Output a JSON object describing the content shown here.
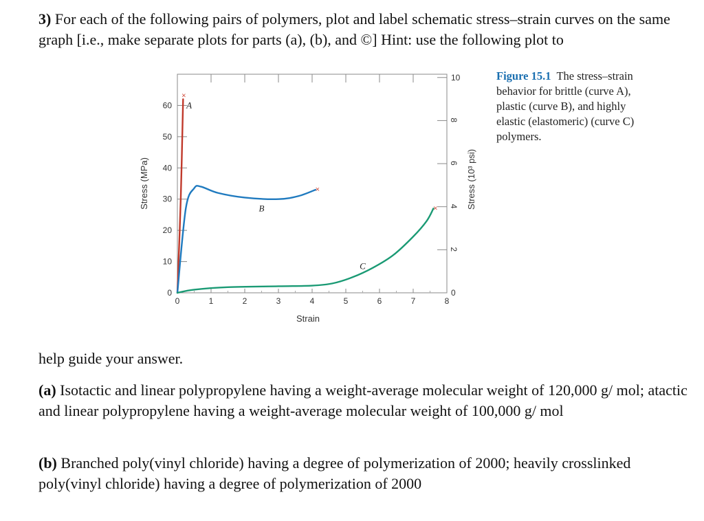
{
  "question": {
    "number": "3)",
    "intro": "For each of the following pairs of polymers, plot and label schematic stress–strain curves on the same graph [i.e., make separate plots for parts (a), (b), and ©] Hint: use the following plot to",
    "after_figure": "help guide your answer.",
    "part_a_label": "(a)",
    "part_a": "Isotactic and linear polypropylene having a weight-average molecular weight of 120,000 g/ mol; atactic and linear polypropylene having a weight-average molecular weight of 100,000 g/ mol",
    "part_b_label": "(b)",
    "part_b": "Branched poly(vinyl chloride) having a degree of polymerization of 2000; heavily crosslinked poly(vinyl chloride) having a degree of polymerization of 2000"
  },
  "caption": {
    "label": "Figure 15.1",
    "text": "The stress–strain behavior for brittle (curve A), plastic (curve B), and highly elastic (elastomeric) (curve C) polymers."
  },
  "chart_data": {
    "type": "line",
    "title": "",
    "xlabel": "Strain",
    "ylabel_left": "Stress (MPa)",
    "ylabel_right": "Stress (10³ psi)",
    "xlim": [
      0,
      8
    ],
    "ylim": [
      0,
      65
    ],
    "x_ticks": [
      0,
      1,
      2,
      3,
      4,
      5,
      6,
      7,
      8
    ],
    "y_ticks_left": [
      0,
      10,
      20,
      30,
      40,
      50,
      60
    ],
    "y_ticks_right": [
      0,
      2,
      4,
      6,
      8,
      10
    ],
    "right_axis_factor_mpa_per_kpsi": 6.895,
    "grid": false,
    "series": [
      {
        "name": "A",
        "color": "#c0392b",
        "points": [
          [
            0,
            0
          ],
          [
            0.1,
            30
          ],
          [
            0.17,
            62
          ]
        ],
        "break_marker": true
      },
      {
        "name": "B",
        "color": "#1f7abf",
        "points": [
          [
            0,
            0
          ],
          [
            0.25,
            27
          ],
          [
            0.5,
            33.5
          ],
          [
            0.7,
            34
          ],
          [
            1.2,
            32
          ],
          [
            2.0,
            30.5
          ],
          [
            3.0,
            30
          ],
          [
            3.6,
            31
          ],
          [
            4.1,
            33
          ]
        ],
        "break_marker": true
      },
      {
        "name": "C",
        "color": "#1a9a74",
        "points": [
          [
            0,
            0
          ],
          [
            0.5,
            1
          ],
          [
            1.5,
            1.8
          ],
          [
            3.0,
            2.1
          ],
          [
            4.0,
            2.3
          ],
          [
            4.6,
            3
          ],
          [
            5.2,
            5
          ],
          [
            5.8,
            8
          ],
          [
            6.4,
            12
          ],
          [
            7.0,
            18
          ],
          [
            7.4,
            23
          ],
          [
            7.6,
            27
          ]
        ],
        "break_marker": true
      }
    ],
    "curve_labels": [
      {
        "text": "A",
        "x": 0.35,
        "y": 60
      },
      {
        "text": "B",
        "x": 2.5,
        "y": 27
      },
      {
        "text": "C",
        "x": 5.5,
        "y": 8.5
      }
    ]
  }
}
